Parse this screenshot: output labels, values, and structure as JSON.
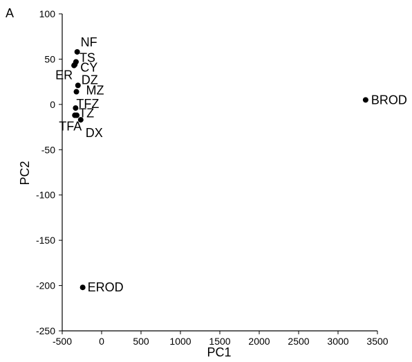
{
  "panel_label": "A",
  "chart_data": {
    "type": "scatter",
    "xlabel": "PC1",
    "ylabel": "PC2",
    "xlim": [
      -500,
      3500
    ],
    "ylim": [
      -250,
      100
    ],
    "xticks": [
      -500,
      0,
      500,
      1000,
      1500,
      2000,
      2500,
      3000,
      3500
    ],
    "yticks": [
      -250,
      -200,
      -150,
      -100,
      -50,
      0,
      50,
      100
    ],
    "grid": false,
    "legend": "none",
    "marker_color": "#000000",
    "points": [
      {
        "label": "NF",
        "x": -310,
        "y": 58
      },
      {
        "label": "TS",
        "x": -325,
        "y": 47
      },
      {
        "label": "CY",
        "x": -340,
        "y": 44
      },
      {
        "label": "ER",
        "x": -350,
        "y": 43
      },
      {
        "label": "DZ",
        "x": -300,
        "y": 21
      },
      {
        "label": "MZ",
        "x": -320,
        "y": 14
      },
      {
        "label": "TFZ",
        "x": -330,
        "y": -4
      },
      {
        "label": "TZ",
        "x": -315,
        "y": -12
      },
      {
        "label": "TFA",
        "x": -340,
        "y": -12
      },
      {
        "label": "DX",
        "x": -265,
        "y": -17
      },
      {
        "label": "BROD",
        "x": 3350,
        "y": 5
      },
      {
        "label": "EROD",
        "x": -240,
        "y": -202
      }
    ]
  }
}
